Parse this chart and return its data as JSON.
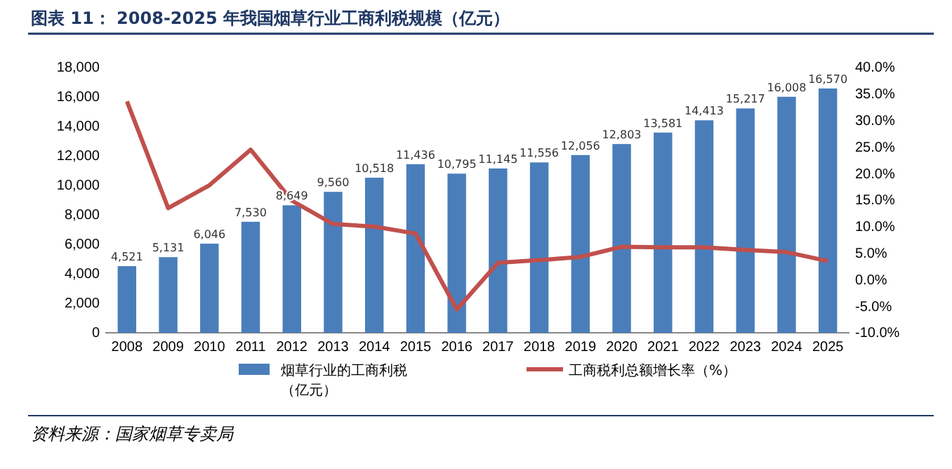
{
  "chart_data": {
    "type": "bar",
    "title": "图表 11：  2008-2025 年我国烟草行业工商利税规模（亿元）",
    "categories": [
      "2008",
      "2009",
      "2010",
      "2011",
      "2012",
      "2013",
      "2014",
      "2015",
      "2016",
      "2017",
      "2018",
      "2019",
      "2020",
      "2021",
      "2022",
      "2023",
      "2024",
      "2025"
    ],
    "series": [
      {
        "name": "烟草行业的工商利税（亿元）",
        "color": "#4a7ebb",
        "values": [
          4521,
          5131,
          6046,
          7530,
          8649,
          9560,
          10518,
          11436,
          10795,
          11145,
          11556,
          12056,
          12803,
          13581,
          14413,
          15217,
          16008,
          16570
        ],
        "value_labels": [
          "4,521",
          "5,131",
          "6,046",
          "7,530",
          "8,649",
          "9,560",
          "10,518",
          "11,436",
          "10,795",
          "11,145",
          "11,556",
          "12,056",
          "12,803",
          "13,581",
          "14,413",
          "15,217",
          "16,008",
          "16,570"
        ]
      },
      {
        "name": "工商税利总额增长率（%）",
        "type": "line",
        "axis": "y2",
        "color": "#c0504d",
        "values": [
          33.6,
          13.5,
          17.8,
          24.5,
          14.9,
          10.5,
          10.0,
          8.7,
          -5.6,
          3.2,
          3.7,
          4.3,
          6.2,
          6.1,
          6.1,
          5.6,
          5.2,
          3.5
        ]
      }
    ],
    "ylim": [
      0,
      18000
    ],
    "yticks": [
      {
        "value": 0,
        "label": "0"
      },
      {
        "value": 2000,
        "label": "2,000"
      },
      {
        "value": 4000,
        "label": "4,000"
      },
      {
        "value": 6000,
        "label": "6,000"
      },
      {
        "value": 8000,
        "label": "8,000"
      },
      {
        "value": 10000,
        "label": "10,000"
      },
      {
        "value": 12000,
        "label": "12,000"
      },
      {
        "value": 14000,
        "label": "14,000"
      },
      {
        "value": 16000,
        "label": "16,000"
      },
      {
        "value": 18000,
        "label": "18,000"
      }
    ],
    "y2lim": [
      -10,
      40
    ],
    "y2ticks": [
      {
        "value": -10,
        "label": "-10.0%"
      },
      {
        "value": -5,
        "label": "-5.0%"
      },
      {
        "value": 0,
        "label": "0.0%"
      },
      {
        "value": 5,
        "label": "5.0%"
      },
      {
        "value": 10,
        "label": "10.0%"
      },
      {
        "value": 15,
        "label": "15.0%"
      },
      {
        "value": 20,
        "label": "20.0%"
      },
      {
        "value": 25,
        "label": "25.0%"
      },
      {
        "value": 30,
        "label": "30.0%"
      },
      {
        "value": 35,
        "label": "35.0%"
      },
      {
        "value": 40,
        "label": "40.0%"
      }
    ],
    "grid": false,
    "legend": "bottom",
    "marker": "none",
    "line_style": "solid",
    "annotations": [
      "资料来源：国家烟草专卖局"
    ]
  }
}
